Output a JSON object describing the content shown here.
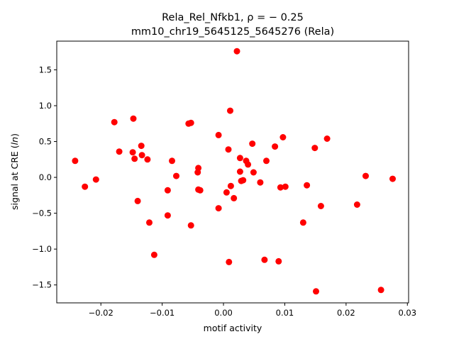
{
  "chart_data": {
    "type": "scatter",
    "title_line1": "Rela_Rel_Nfkb1, ρ = − 0.25",
    "title_line2": "mm10_chr19_5645125_5645276 (Rela)",
    "xlabel": "motif activity",
    "ylabel": "signal at CRE (ln)",
    "xlim": [
      -0.0272,
      0.0302
    ],
    "ylim": [
      -1.75,
      1.9
    ],
    "xticks": [
      -0.02,
      -0.01,
      0.0,
      0.01,
      0.02,
      0.03
    ],
    "xtick_labels": [
      "−0.02",
      "−0.01",
      "0.00",
      "0.01",
      "0.02",
      "0.03"
    ],
    "yticks": [
      -1.5,
      -1.0,
      -0.5,
      0.0,
      0.5,
      1.0,
      1.5
    ],
    "ytick_labels": [
      "−1.5",
      "−1.0",
      "−0.5",
      "0.0",
      "0.5",
      "1.0",
      "1.5"
    ],
    "grid": false,
    "marker_color": "#ff0000",
    "points": [
      {
        "x": -0.0242,
        "y": 0.23
      },
      {
        "x": -0.0226,
        "y": -0.13
      },
      {
        "x": -0.0208,
        "y": -0.03
      },
      {
        "x": -0.0178,
        "y": 0.77
      },
      {
        "x": -0.017,
        "y": 0.36
      },
      {
        "x": -0.0147,
        "y": 0.82
      },
      {
        "x": -0.0148,
        "y": 0.35
      },
      {
        "x": -0.0145,
        "y": 0.26
      },
      {
        "x": -0.014,
        "y": -0.33
      },
      {
        "x": -0.0134,
        "y": 0.44
      },
      {
        "x": -0.0133,
        "y": 0.31
      },
      {
        "x": -0.0124,
        "y": 0.25
      },
      {
        "x": -0.0121,
        "y": -0.63
      },
      {
        "x": -0.0113,
        "y": -1.08
      },
      {
        "x": -0.0091,
        "y": -0.18
      },
      {
        "x": -0.0091,
        "y": -0.53
      },
      {
        "x": -0.0084,
        "y": 0.23
      },
      {
        "x": -0.0077,
        "y": 0.02
      },
      {
        "x": -0.0057,
        "y": 0.75
      },
      {
        "x": -0.0053,
        "y": 0.76
      },
      {
        "x": -0.0053,
        "y": -0.67
      },
      {
        "x": -0.0042,
        "y": 0.07
      },
      {
        "x": -0.0041,
        "y": 0.13
      },
      {
        "x": -0.0041,
        "y": -0.17
      },
      {
        "x": -0.0038,
        "y": -0.18
      },
      {
        "x": -0.0008,
        "y": 0.59
      },
      {
        "x": -0.0008,
        "y": -0.43
      },
      {
        "x": 0.0005,
        "y": -0.21
      },
      {
        "x": 0.0008,
        "y": 0.39
      },
      {
        "x": 0.0009,
        "y": -1.18
      },
      {
        "x": 0.0011,
        "y": 0.93
      },
      {
        "x": 0.0012,
        "y": -0.12
      },
      {
        "x": 0.0017,
        "y": -0.29
      },
      {
        "x": 0.0022,
        "y": 1.76
      },
      {
        "x": 0.0027,
        "y": 0.27
      },
      {
        "x": 0.0027,
        "y": 0.08
      },
      {
        "x": 0.0029,
        "y": -0.05
      },
      {
        "x": 0.0032,
        "y": -0.04
      },
      {
        "x": 0.0037,
        "y": 0.23
      },
      {
        "x": 0.004,
        "y": 0.18
      },
      {
        "x": 0.0047,
        "y": 0.47
      },
      {
        "x": 0.0049,
        "y": 0.07
      },
      {
        "x": 0.006,
        "y": -0.07
      },
      {
        "x": 0.0067,
        "y": -1.15
      },
      {
        "x": 0.007,
        "y": 0.23
      },
      {
        "x": 0.0084,
        "y": 0.43
      },
      {
        "x": 0.009,
        "y": -1.17
      },
      {
        "x": 0.0093,
        "y": -0.14
      },
      {
        "x": 0.0097,
        "y": 0.56
      },
      {
        "x": 0.0101,
        "y": -0.13
      },
      {
        "x": 0.013,
        "y": -0.63
      },
      {
        "x": 0.0136,
        "y": -0.11
      },
      {
        "x": 0.0149,
        "y": 0.41
      },
      {
        "x": 0.0151,
        "y": -1.59
      },
      {
        "x": 0.0159,
        "y": -0.4
      },
      {
        "x": 0.0169,
        "y": 0.54
      },
      {
        "x": 0.0218,
        "y": -0.38
      },
      {
        "x": 0.0232,
        "y": 0.02
      },
      {
        "x": 0.0257,
        "y": -1.57
      },
      {
        "x": 0.0276,
        "y": -0.02
      }
    ]
  }
}
